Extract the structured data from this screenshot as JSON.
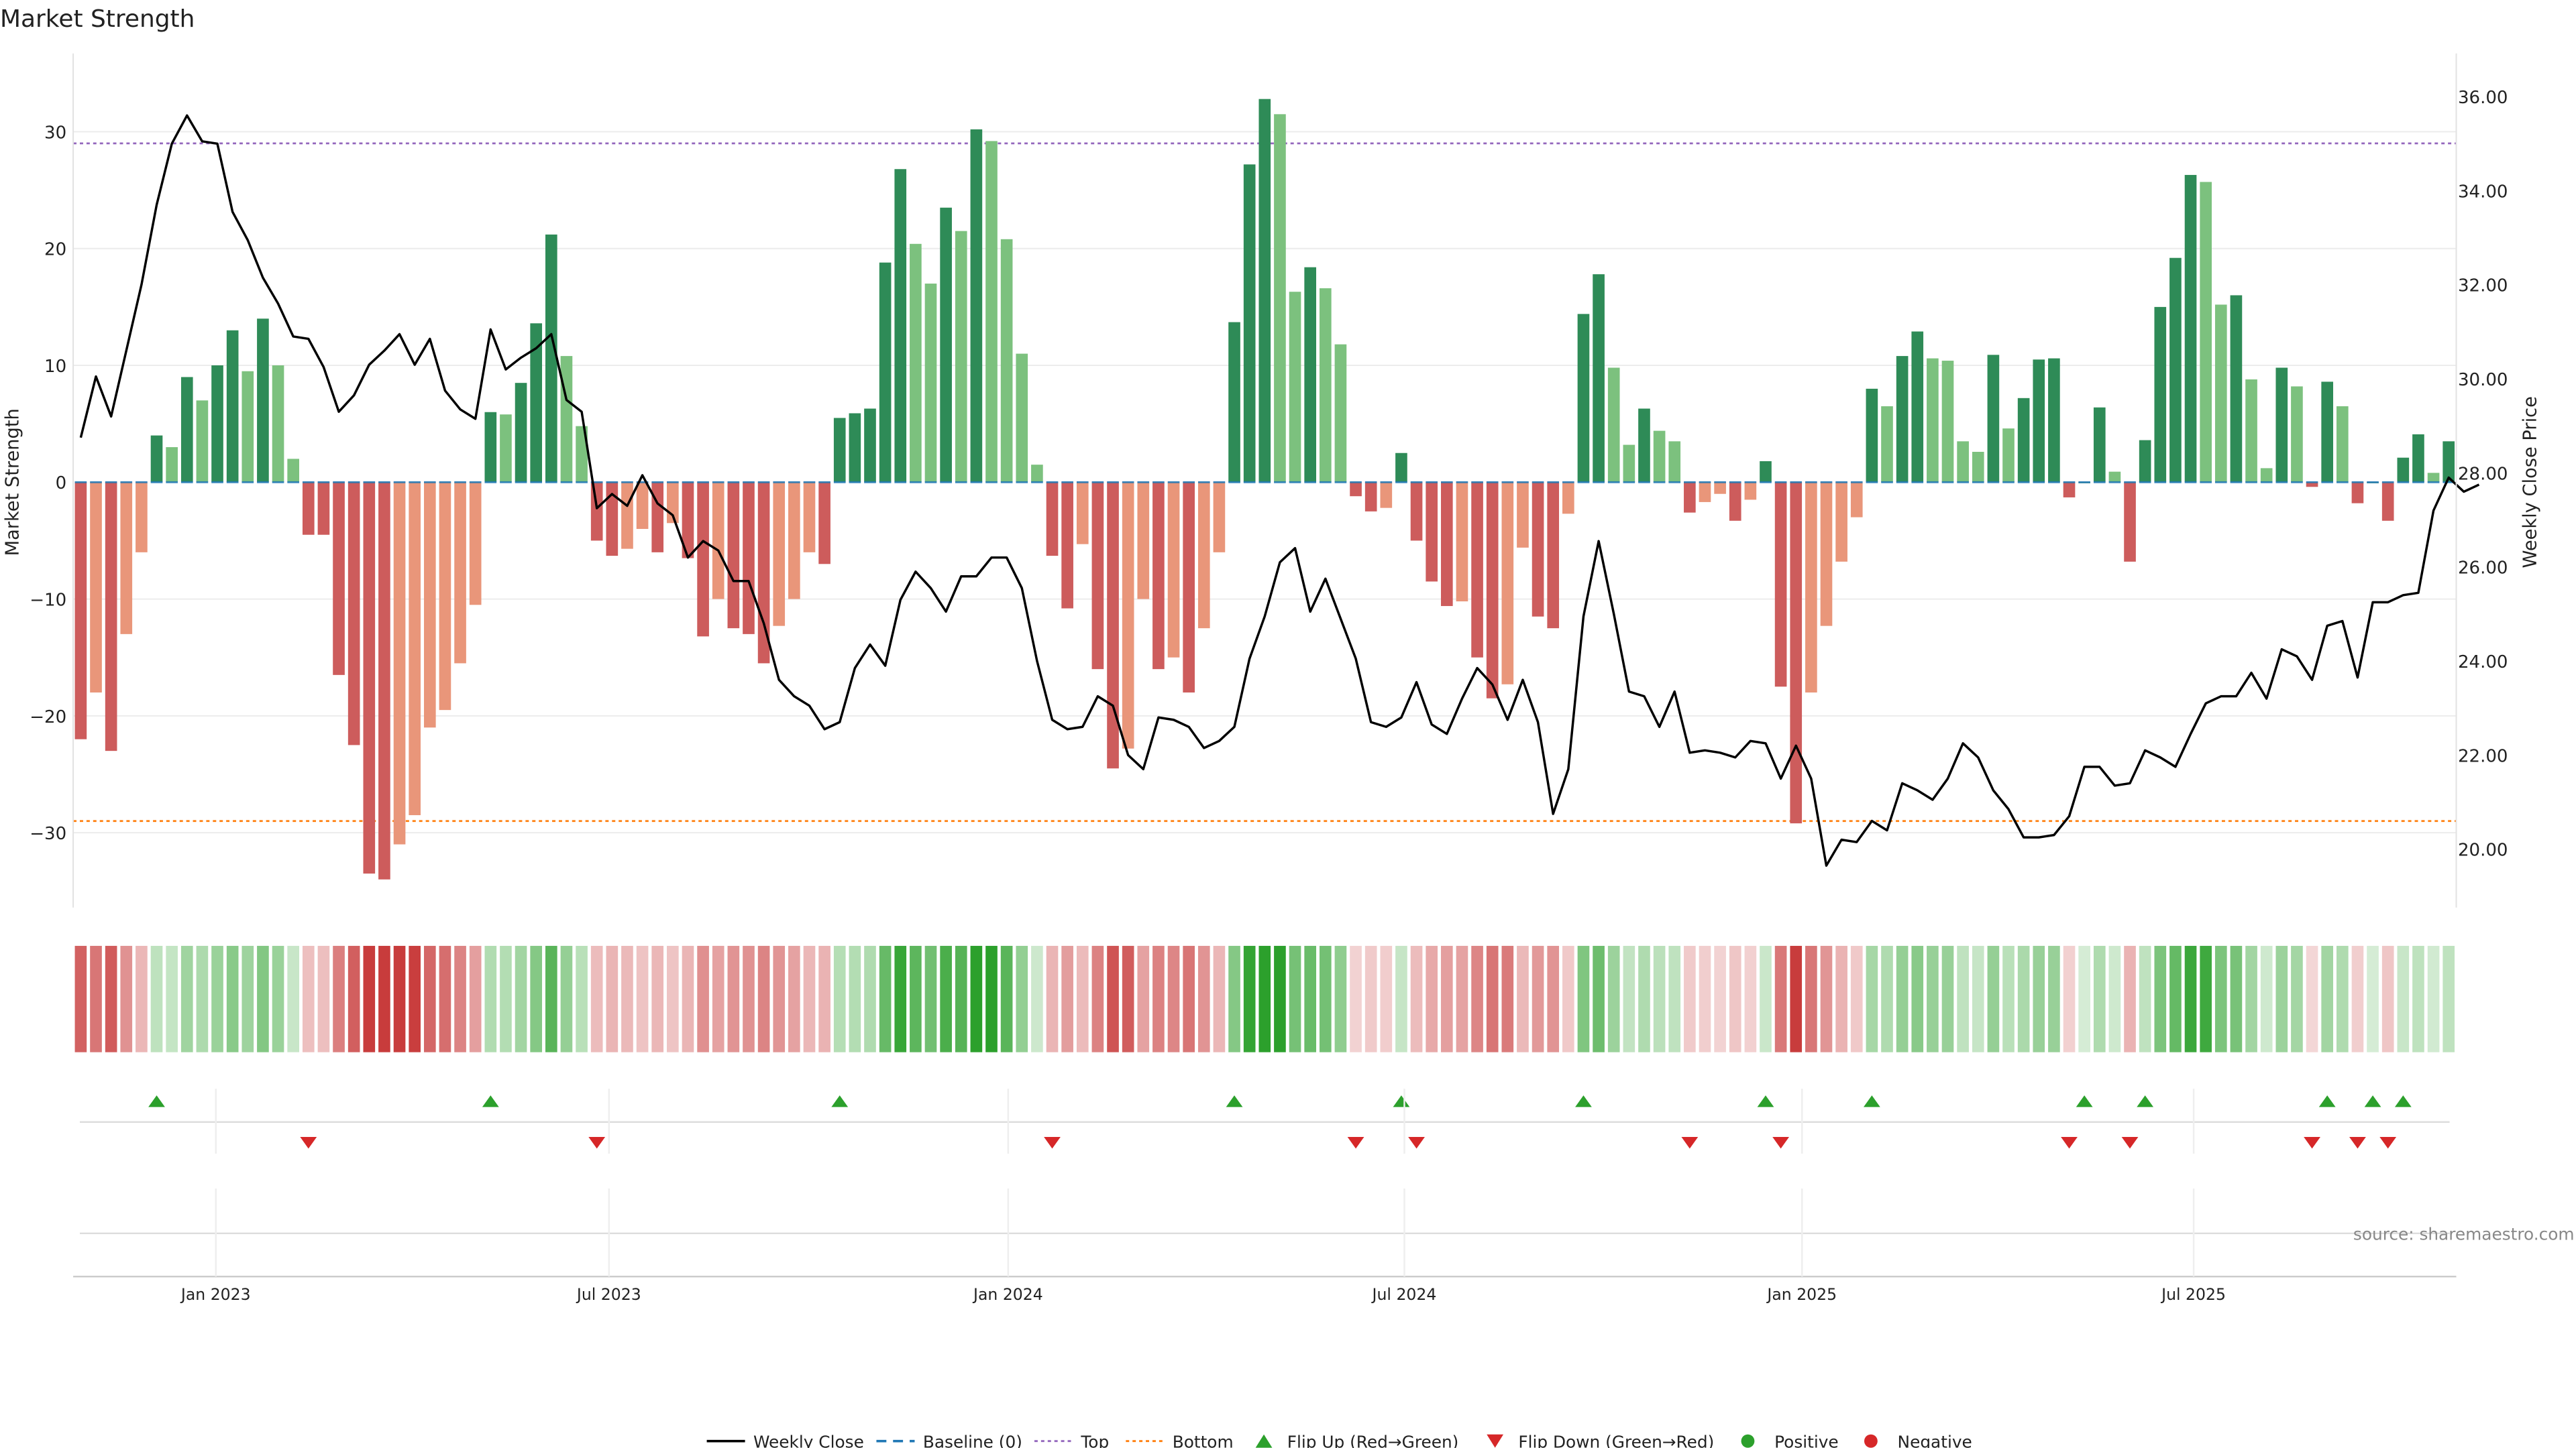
{
  "chart_data": {
    "type": "bar",
    "title": "Market Strength",
    "ylabel": "Market Strength",
    "y2label": "Weekly Close Price",
    "ylim": [
      -36,
      37
    ],
    "y2lim": [
      18.9,
      36.8
    ],
    "yticks": [
      -30,
      -20,
      -10,
      0,
      10,
      20,
      30
    ],
    "y2ticks": [
      "20.00",
      "22.00",
      "24.00",
      "26.00",
      "28.00",
      "30.00",
      "32.00",
      "34.00",
      "36.00"
    ],
    "top_line": 29,
    "bottom_line": -29,
    "x_axis": {
      "start": "2022-10-29",
      "end": "2025-11-01",
      "ticks": [
        {
          "label": "Jan 2023",
          "week": 9.4
        },
        {
          "label": "Jul 2023",
          "week": 35.3
        },
        {
          "label": "Jan 2024",
          "week": 61.6
        },
        {
          "label": "Jul 2024",
          "week": 87.7
        },
        {
          "label": "Jan 2025",
          "week": 113.9
        },
        {
          "label": "Jul 2025",
          "week": 139.7
        }
      ]
    },
    "strength": [
      -22,
      -18,
      -23,
      -13,
      -6,
      4,
      3,
      9,
      7,
      10,
      13,
      9.5,
      14,
      10,
      2,
      -4.5,
      -4.5,
      -16.5,
      -22.5,
      -33.5,
      -34,
      -31,
      -28.5,
      -21,
      -19.5,
      -15.5,
      -10.5,
      6,
      5.8,
      8.5,
      13.6,
      21.2,
      10.8,
      4.8,
      -5,
      -6.3,
      -5.7,
      -4,
      -6,
      -3.5,
      -6.5,
      -13.2,
      -10,
      -12.5,
      -13,
      -15.5,
      -12.3,
      -10,
      -6,
      -7,
      5.5,
      5.9,
      6.3,
      18.8,
      26.8,
      20.4,
      17,
      23.5,
      21.5,
      30.2,
      29.2,
      20.8,
      11,
      1.5,
      -6.3,
      -10.8,
      -5.3,
      -16,
      -24.5,
      -22.8,
      -10,
      -16,
      -15,
      -18,
      -12.5,
      -6,
      13.7,
      27.2,
      32.8,
      31.5,
      16.3,
      18.4,
      16.6,
      11.8,
      -1.2,
      -2.5,
      -2.2,
      2.5,
      -5,
      -8.5,
      -10.6,
      -10.2,
      -15,
      -18.5,
      -17.3,
      -5.6,
      -11.5,
      -12.5,
      -2.7,
      14.4,
      17.8,
      9.8,
      3.2,
      6.3,
      4.4,
      3.5,
      -2.6,
      -1.7,
      -1,
      -3.3,
      -1.5,
      1.8,
      -17.5,
      -29.2,
      -18,
      -12.3,
      -6.8,
      -3,
      8,
      6.5,
      10.8,
      12.9,
      10.6,
      10.4,
      3.5,
      2.6,
      10.9,
      4.6,
      7.2,
      10.5,
      10.6,
      -1.3,
      0,
      6.4,
      0.9,
      -6.8,
      3.6,
      15,
      19.2,
      26.3,
      25.7,
      15.2,
      16,
      8.8,
      1.2,
      9.8,
      8.2,
      -0.4,
      8.6,
      6.5,
      -1.8,
      0,
      -3.3,
      2.1,
      4.1,
      0.8,
      3.5
    ],
    "close": [
      28.75,
      30.05,
      29.2,
      30.6,
      32,
      33.7,
      35,
      35.6,
      35.05,
      35,
      33.55,
      32.95,
      32.15,
      31.6,
      30.9,
      30.85,
      30.25,
      29.3,
      29.65,
      30.3,
      30.6,
      30.95,
      30.3,
      30.85,
      29.75,
      29.35,
      29.15,
      31.05,
      30.2,
      30.45,
      30.65,
      30.95,
      29.55,
      29.3,
      27.25,
      27.55,
      27.3,
      27.95,
      27.35,
      27.1,
      26.2,
      26.55,
      26.35,
      25.7,
      25.7,
      24.8,
      23.6,
      23.25,
      23.05,
      22.55,
      22.7,
      23.85,
      24.35,
      23.9,
      25.3,
      25.9,
      25.55,
      25.05,
      25.8,
      25.8,
      26.2,
      26.2,
      25.55,
      24,
      22.75,
      22.55,
      22.6,
      23.25,
      23.05,
      22,
      21.7,
      22.8,
      22.75,
      22.6,
      22.15,
      22.3,
      22.6,
      24.05,
      24.95,
      26.1,
      26.4,
      25.05,
      25.75,
      24.9,
      24.05,
      22.7,
      22.6,
      22.8,
      23.55,
      22.65,
      22.45,
      23.2,
      23.85,
      23.5,
      22.75,
      23.6,
      22.7,
      20.75,
      21.7,
      24.95,
      26.55,
      25,
      23.35,
      23.25,
      22.6,
      23.35,
      22.05,
      22.1,
      22.05,
      21.95,
      22.3,
      22.25,
      21.5,
      22.2,
      21.5,
      19.65,
      20.2,
      20.15,
      20.6,
      20.4,
      21.4,
      21.25,
      21.05,
      21.5,
      22.25,
      21.95,
      21.25,
      20.85,
      20.25,
      20.25,
      20.3,
      20.7,
      21.75,
      21.75,
      21.35,
      21.4,
      22.1,
      21.95,
      21.75,
      22.45,
      23.1,
      23.25,
      23.25,
      23.75,
      23.2,
      24.25,
      24.1,
      23.6,
      24.75,
      24.85,
      23.65,
      25.25,
      25.25,
      25.4,
      25.45,
      27.2,
      27.9,
      27.6,
      27.75
    ]
  },
  "source": "source: sharemaestro.com",
  "legend": [
    {
      "label": "Weekly Close",
      "kind": "solid-line",
      "color": "#000000"
    },
    {
      "label": "Baseline (0)",
      "kind": "dashed-line",
      "color": "#1f77b4"
    },
    {
      "label": "Top",
      "kind": "dotted-line",
      "color": "#9467bd"
    },
    {
      "label": "Bottom",
      "kind": "dotted-line",
      "color": "#ff7f0e"
    },
    {
      "label": "Flip Up (Red→Green)",
      "kind": "up-triangle",
      "color": "#2ca02c"
    },
    {
      "label": "Flip Down (Green→Red)",
      "kind": "down-triangle",
      "color": "#d62728"
    },
    {
      "label": "Positive",
      "kind": "dot",
      "color": "#2ca02c"
    },
    {
      "label": "Negative",
      "kind": "dot",
      "color": "#d62728"
    }
  ],
  "colors": {
    "pos_strong": "#2e8b57",
    "pos_light": "#7cc17e",
    "neg_strong": "#cd5c5c",
    "neg_light": "#e9967a",
    "close_line": "#000000",
    "top_line": "#9467bd",
    "bottom_line": "#ff7f0e",
    "baseline": "#1f77b4",
    "flip_up": "#2ca02c",
    "flip_down": "#d62728"
  }
}
